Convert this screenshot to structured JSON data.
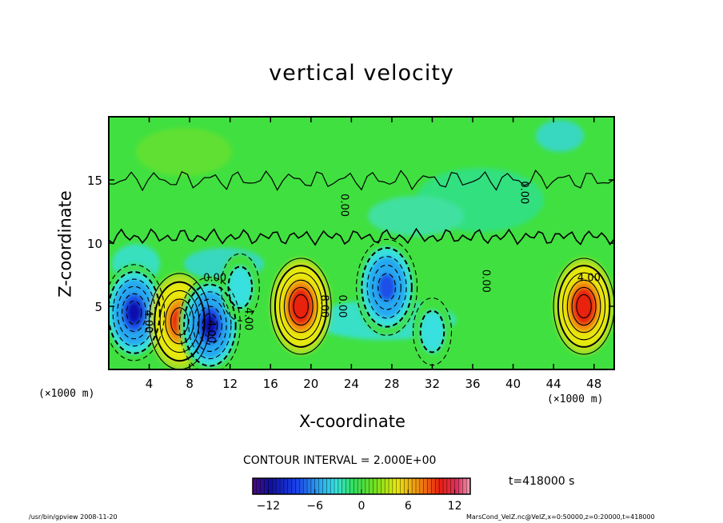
{
  "chart_data": {
    "type": "heatmap",
    "title": "vertical velocity",
    "xlabel": "X-coordinate",
    "ylabel": "Z-coordinate",
    "x_unit_left": "(×1000 m)",
    "x_unit_right": "(×1000 m)",
    "xlim": [
      0,
      50
    ],
    "ylim": [
      0,
      20
    ],
    "x_ticks": [
      4,
      8,
      12,
      16,
      20,
      24,
      28,
      32,
      36,
      40,
      44,
      48
    ],
    "y_ticks": [
      5,
      10,
      15
    ],
    "contour_interval_label": "CONTOUR INTERVAL = 2.000E+00",
    "contour_labels": [
      "4.00",
      "0.00",
      "4.00",
      "4.00",
      "8.00",
      "0.00",
      "0.00",
      "0.00",
      "4.00",
      "0.00"
    ],
    "colorbar": {
      "range": [
        -14,
        14
      ],
      "ticks": [
        -12,
        -6,
        0,
        6,
        12
      ]
    },
    "features": [
      {
        "x": 2.5,
        "z": 4.5,
        "value": -12,
        "kind": "downdraft"
      },
      {
        "x": 7,
        "z": 3.8,
        "value": 10,
        "kind": "updraft"
      },
      {
        "x": 10,
        "z": 3.5,
        "value": -12,
        "kind": "downdraft"
      },
      {
        "x": 13,
        "z": 6.5,
        "value": -5,
        "kind": "downdraft"
      },
      {
        "x": 19,
        "z": 5,
        "value": 12,
        "kind": "updraft"
      },
      {
        "x": 27.5,
        "z": 6.5,
        "value": -10,
        "kind": "downdraft"
      },
      {
        "x": 32,
        "z": 3,
        "value": -4,
        "kind": "downdraft"
      },
      {
        "x": 47,
        "z": 5,
        "value": 12,
        "kind": "updraft"
      }
    ],
    "grid": false
  },
  "annotations": {
    "time": "t=418000 s",
    "footer_left": "/usr/bin/gpview  2008-11-20",
    "footer_right": "MarsCond_VelZ.nc@VelZ,x=0:50000,z=0:20000,t=418000"
  }
}
